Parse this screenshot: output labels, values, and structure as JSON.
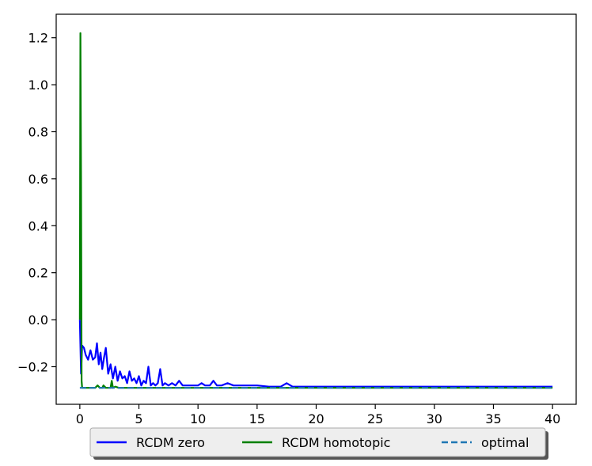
{
  "chart_data": {
    "type": "line",
    "title": "",
    "xlabel": "",
    "ylabel": "",
    "xlim": [
      -2,
      42
    ],
    "ylim": [
      -0.36,
      1.3
    ],
    "xticks": [
      0,
      5,
      10,
      15,
      20,
      25,
      30,
      35,
      40
    ],
    "yticks": [
      -0.2,
      0.0,
      0.2,
      0.4,
      0.6,
      0.8,
      1.0,
      1.2
    ],
    "xtick_labels": [
      "0",
      "5",
      "10",
      "15",
      "20",
      "25",
      "30",
      "35",
      "40"
    ],
    "ytick_labels": [
      "−0.2",
      "0.0",
      "0.2",
      "0.4",
      "0.6",
      "0.8",
      "1.0",
      "1.2"
    ],
    "grid": false,
    "legend_position": "bottom-center, below axes",
    "series": [
      {
        "name": "RCDM zero",
        "color": "#0000ff",
        "style": "solid",
        "x": [
          0,
          0.1,
          0.2,
          0.35,
          0.5,
          0.7,
          0.9,
          1.1,
          1.3,
          1.45,
          1.6,
          1.75,
          1.9,
          2.05,
          2.2,
          2.4,
          2.6,
          2.8,
          3.0,
          3.2,
          3.4,
          3.6,
          3.8,
          4.0,
          4.2,
          4.4,
          4.6,
          4.8,
          5.0,
          5.2,
          5.4,
          5.6,
          5.8,
          6.0,
          6.2,
          6.4,
          6.6,
          6.8,
          7.0,
          7.2,
          7.5,
          7.8,
          8.1,
          8.4,
          8.7,
          9.0,
          9.5,
          10.0,
          10.3,
          10.6,
          11.0,
          11.3,
          11.6,
          12.0,
          12.5,
          13.0,
          13.5,
          14.0,
          15.0,
          16.0,
          17.0,
          17.5,
          18.0,
          19.0,
          20.0,
          22.0,
          25.0,
          28.0,
          30.0,
          35.0,
          40.0
        ],
        "y": [
          0.0,
          -0.23,
          -0.11,
          -0.12,
          -0.15,
          -0.17,
          -0.13,
          -0.17,
          -0.16,
          -0.1,
          -0.19,
          -0.14,
          -0.21,
          -0.16,
          -0.12,
          -0.23,
          -0.19,
          -0.25,
          -0.2,
          -0.26,
          -0.22,
          -0.25,
          -0.24,
          -0.27,
          -0.22,
          -0.26,
          -0.25,
          -0.27,
          -0.24,
          -0.28,
          -0.26,
          -0.27,
          -0.2,
          -0.28,
          -0.27,
          -0.28,
          -0.27,
          -0.21,
          -0.28,
          -0.27,
          -0.28,
          -0.27,
          -0.28,
          -0.26,
          -0.28,
          -0.28,
          -0.28,
          -0.28,
          -0.27,
          -0.28,
          -0.28,
          -0.26,
          -0.28,
          -0.28,
          -0.27,
          -0.28,
          -0.28,
          -0.28,
          -0.28,
          -0.285,
          -0.285,
          -0.27,
          -0.285,
          -0.285,
          -0.285,
          -0.285,
          -0.285,
          -0.285,
          -0.285,
          -0.285,
          -0.285
        ]
      },
      {
        "name": "RCDM homotopic",
        "color": "#008000",
        "style": "solid",
        "x": [
          0,
          0.05,
          0.1,
          0.15,
          0.2,
          0.5,
          1.0,
          1.3,
          1.5,
          1.7,
          1.9,
          2.0,
          2.2,
          2.4,
          2.6,
          2.7,
          2.8,
          3.0,
          3.3,
          3.6,
          4.0,
          5.0,
          6.0,
          8.0,
          10.0,
          15.0,
          20.0,
          30.0,
          40.0
        ],
        "y": [
          0.0,
          1.22,
          0.6,
          -0.26,
          -0.29,
          -0.29,
          -0.29,
          -0.29,
          -0.28,
          -0.29,
          -0.29,
          -0.28,
          -0.29,
          -0.29,
          -0.29,
          -0.26,
          -0.29,
          -0.285,
          -0.29,
          -0.29,
          -0.29,
          -0.29,
          -0.29,
          -0.29,
          -0.29,
          -0.29,
          -0.29,
          -0.29,
          -0.29
        ]
      },
      {
        "name": "optimal",
        "color": "#1f77b4",
        "style": "dashed",
        "x": [
          0,
          40
        ],
        "y": [
          -0.29,
          -0.29
        ]
      }
    ]
  }
}
